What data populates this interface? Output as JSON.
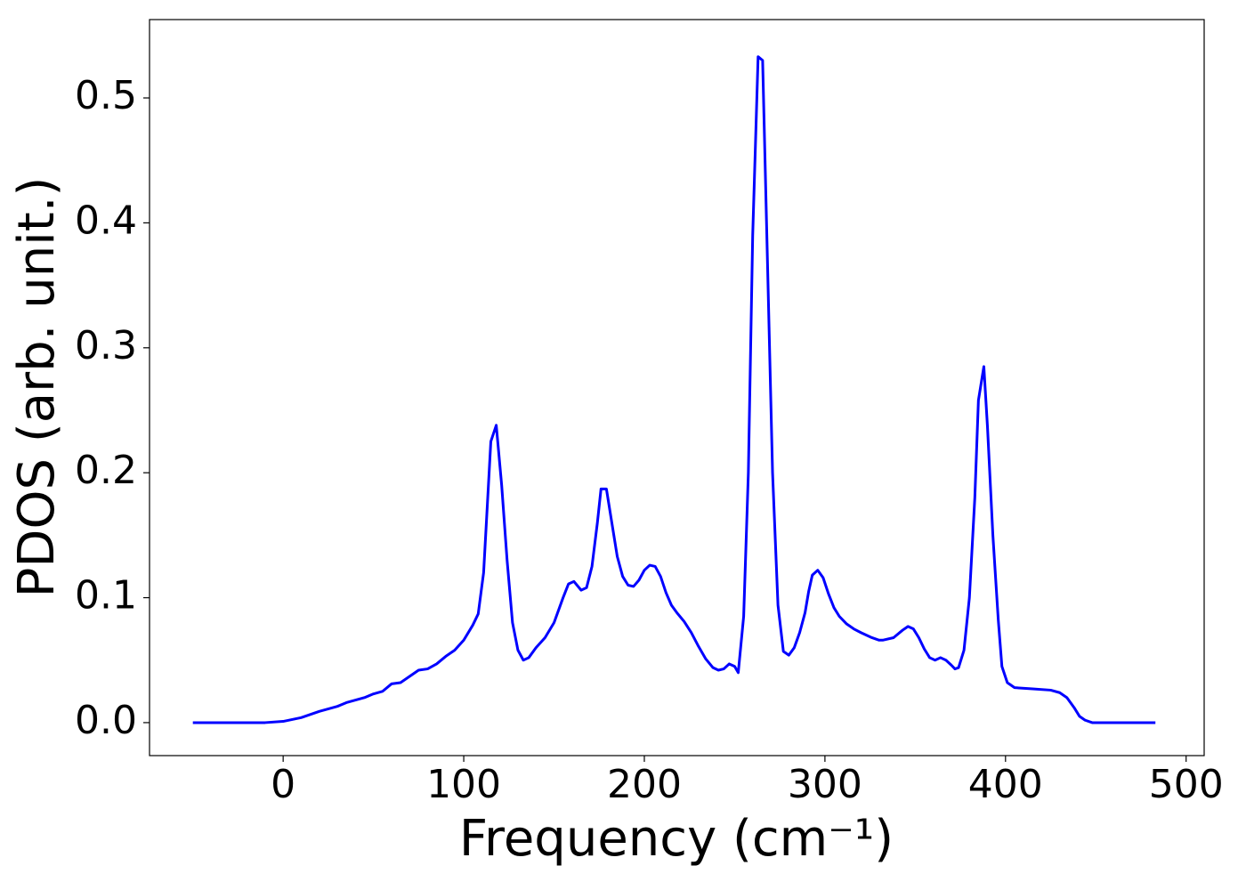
{
  "chart_data": {
    "type": "line",
    "xlabel": "Frequency (cm⁻¹)",
    "ylabel": "PDOS (arb. unit.)",
    "xlim": [
      -74,
      510
    ],
    "ylim": [
      -0.0264,
      0.5627
    ],
    "xticks": [
      0,
      100,
      200,
      300,
      400,
      500
    ],
    "yticks": [
      {
        "value": 0,
        "label": "0.0"
      },
      0.1,
      0.2,
      0.3,
      0.4,
      0.5
    ],
    "grid": false,
    "series": [
      {
        "color": "#0000ff",
        "x": [
          -50,
          -10,
          0,
          10,
          20,
          30,
          35,
          45,
          50,
          55,
          60,
          65,
          70,
          75,
          80,
          85,
          90,
          95,
          100,
          105,
          108,
          111,
          115,
          118,
          121,
          124,
          127,
          130,
          133,
          136,
          140,
          145,
          150,
          155,
          158,
          161,
          165,
          168,
          171,
          174,
          176,
          179,
          182,
          185,
          188,
          191,
          194,
          197,
          200,
          203,
          206,
          209,
          212,
          215,
          218,
          222,
          226,
          230,
          234,
          238,
          241,
          244,
          247,
          250,
          252,
          255,
          257.6,
          260,
          263,
          265.5,
          268,
          271,
          274,
          277,
          280,
          283,
          286,
          289,
          291,
          293,
          296,
          299,
          302,
          305,
          308,
          312,
          316,
          320,
          326,
          330,
          332,
          338,
          343,
          346,
          349,
          352,
          355,
          358,
          361,
          364,
          367,
          370,
          372,
          374,
          377,
          380,
          383,
          385,
          388,
          390,
          393,
          396,
          398,
          401,
          405,
          415,
          425,
          430,
          434,
          438,
          441,
          444,
          448,
          483
        ],
        "values": [
          0,
          0,
          0.001,
          0.004,
          0.009,
          0.013,
          0.016,
          0.02,
          0.023,
          0.025,
          0.031,
          0.032,
          0.037,
          0.042,
          0.043,
          0.047,
          0.053,
          0.058,
          0.066,
          0.078,
          0.087,
          0.12,
          0.225,
          0.238,
          0.19,
          0.13,
          0.08,
          0.058,
          0.05,
          0.052,
          0.06,
          0.068,
          0.08,
          0.1,
          0.111,
          0.113,
          0.106,
          0.108,
          0.125,
          0.16,
          0.187,
          0.187,
          0.16,
          0.133,
          0.117,
          0.11,
          0.109,
          0.114,
          0.122,
          0.126,
          0.125,
          0.117,
          0.104,
          0.094,
          0.088,
          0.081,
          0.072,
          0.061,
          0.051,
          0.044,
          0.042,
          0.043,
          0.047,
          0.045,
          0.04,
          0.085,
          0.2,
          0.39,
          0.533,
          0.53,
          0.38,
          0.2,
          0.094,
          0.057,
          0.054,
          0.06,
          0.072,
          0.088,
          0.105,
          0.118,
          0.122,
          0.116,
          0.103,
          0.092,
          0.085,
          0.079,
          0.075,
          0.072,
          0.068,
          0.066,
          0.066,
          0.068,
          0.074,
          0.077,
          0.075,
          0.068,
          0.059,
          0.052,
          0.05,
          0.052,
          0.05,
          0.046,
          0.043,
          0.044,
          0.058,
          0.1,
          0.18,
          0.258,
          0.285,
          0.237,
          0.15,
          0.082,
          0.045,
          0.032,
          0.028,
          0.027,
          0.026,
          0.024,
          0.02,
          0.012,
          0.005,
          0.002,
          0,
          0
        ]
      }
    ]
  }
}
